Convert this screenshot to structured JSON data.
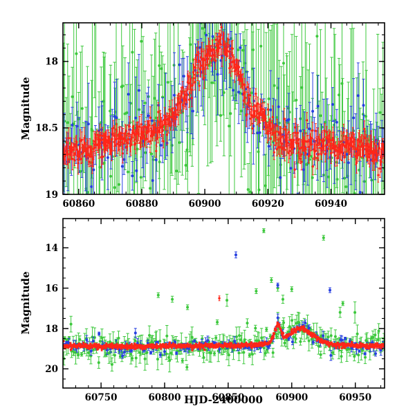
{
  "figure": {
    "background": "#ffffff",
    "description": "Two-panel photometric light curve, magnitude vs HJD"
  },
  "chart_data": [
    {
      "id": "top-panel",
      "type": "scatter",
      "title": "",
      "xlabel": "",
      "ylabel": "Magnitude",
      "xlim": [
        60855,
        60957
      ],
      "ylim": [
        17.71,
        19.0
      ],
      "y_inverted": true,
      "grid": false,
      "legend": "none",
      "xticks": [
        {
          "v": 60860,
          "label": "60860"
        },
        {
          "v": 60880,
          "label": "60880"
        },
        {
          "v": 60900,
          "label": "60900"
        },
        {
          "v": 60920,
          "label": "60920"
        },
        {
          "v": 60940,
          "label": "60940"
        }
      ],
      "x_minor": 5,
      "yticks": [
        {
          "v": 18,
          "label": "18"
        },
        {
          "v": 18.5,
          "label": "18.5"
        },
        {
          "v": 19,
          "label": "19"
        }
      ],
      "y_minor": 0.1,
      "trend": [
        [
          60855,
          18.68
        ],
        [
          60860,
          18.66
        ],
        [
          60864,
          18.68
        ],
        [
          60868,
          18.6
        ],
        [
          60872,
          18.57
        ],
        [
          60876,
          18.56
        ],
        [
          60880,
          18.55
        ],
        [
          60884,
          18.51
        ],
        [
          60888,
          18.46
        ],
        [
          60891,
          18.38
        ],
        [
          60894,
          18.22
        ],
        [
          60897,
          18.1
        ],
        [
          60900,
          17.99
        ],
        [
          60903,
          17.91
        ],
        [
          60906,
          17.87
        ],
        [
          60908,
          17.93
        ],
        [
          60911,
          18.1
        ],
        [
          60913,
          18.26
        ],
        [
          60915,
          18.4
        ],
        [
          60917,
          18.34
        ],
        [
          60920,
          18.5
        ],
        [
          60923,
          18.58
        ],
        [
          60927,
          18.61
        ],
        [
          60932,
          18.62
        ],
        [
          60937,
          18.62
        ],
        [
          60942,
          18.64
        ],
        [
          60947,
          18.64
        ],
        [
          60952,
          18.66
        ],
        [
          60957,
          18.66
        ]
      ],
      "series": [
        {
          "name": "green",
          "color": "#3cc83c",
          "n": 230,
          "scatter": 0.26,
          "tail_p": 0.1,
          "tail_f": 2.8,
          "err": 0.1,
          "err_var": 0.85,
          "r": 2.0,
          "cap": 2.2,
          "seed": 11,
          "extra": []
        },
        {
          "name": "blue",
          "color": "#2840e0",
          "n": 140,
          "scatter": 0.11,
          "tail_p": 0.06,
          "tail_f": 2.2,
          "err": 0.06,
          "err_var": 0.28,
          "r": 2.0,
          "cap": 2.0,
          "seed": 22,
          "extra": []
        },
        {
          "name": "red",
          "color": "#ff2619",
          "n": 520,
          "scatter": 0.05,
          "tail_p": 0.03,
          "tail_f": 1.8,
          "err": 0.035,
          "err_var": 0.05,
          "r": 1.7,
          "cap": 1.4,
          "seed": 33,
          "extra": []
        }
      ]
    },
    {
      "id": "bottom-panel",
      "type": "scatter",
      "title": "",
      "xlabel": "HJD-2400000",
      "ylabel": "Magnitude",
      "xlim": [
        60720,
        60973
      ],
      "ylim": [
        12.55,
        20.95
      ],
      "y_inverted": true,
      "grid": false,
      "legend": "none",
      "xticks": [
        {
          "v": 60750,
          "label": "60750"
        },
        {
          "v": 60800,
          "label": "60800"
        },
        {
          "v": 60850,
          "label": "60850"
        },
        {
          "v": 60900,
          "label": "60900"
        },
        {
          "v": 60950,
          "label": "60950"
        }
      ],
      "x_minor": 10,
      "yticks": [
        {
          "v": 14,
          "label": "14"
        },
        {
          "v": 16,
          "label": "16"
        },
        {
          "v": 18,
          "label": "18"
        },
        {
          "v": 20,
          "label": "20"
        }
      ],
      "y_minor": 0.5,
      "trend": [
        [
          60720,
          18.88
        ],
        [
          60745,
          18.87
        ],
        [
          60770,
          18.89
        ],
        [
          60795,
          18.87
        ],
        [
          60815,
          18.86
        ],
        [
          60835,
          18.86
        ],
        [
          60855,
          18.85
        ],
        [
          60870,
          18.82
        ],
        [
          60879,
          18.79
        ],
        [
          60883,
          18.68
        ],
        [
          60886,
          18.35
        ],
        [
          60889,
          17.68
        ],
        [
          60891,
          18.05
        ],
        [
          60894,
          18.42
        ],
        [
          60897,
          18.35
        ],
        [
          60900,
          18.18
        ],
        [
          60904,
          18.02
        ],
        [
          60907,
          17.96
        ],
        [
          60910,
          18.03
        ],
        [
          60913,
          18.15
        ],
        [
          60916,
          18.28
        ],
        [
          60919,
          18.42
        ],
        [
          60923,
          18.58
        ],
        [
          60927,
          18.7
        ],
        [
          60933,
          18.79
        ],
        [
          60942,
          18.83
        ],
        [
          60955,
          18.85
        ],
        [
          60973,
          18.85
        ]
      ],
      "series": [
        {
          "name": "green",
          "color": "#3cc83c",
          "n": 270,
          "scatter": 0.27,
          "tail_p": 0.12,
          "tail_f": 3.5,
          "err": 0.08,
          "err_var": 0.5,
          "r": 2.0,
          "cap": 2.2,
          "seed": 44,
          "extra": [
            [
              60795,
              16.35,
              0.12
            ],
            [
              60806,
              16.55,
              0.15
            ],
            [
              60818,
              16.95,
              0.12
            ],
            [
              60849,
              16.6,
              0.3
            ],
            [
              60872,
              16.15,
              0.12
            ],
            [
              60878,
              13.15,
              0.1
            ],
            [
              60884,
              15.6,
              0.12
            ],
            [
              60889,
              16.0,
              0.15
            ],
            [
              60893,
              16.55,
              0.2
            ],
            [
              60900,
              16.05,
              0.12
            ],
            [
              60925,
              13.5,
              0.12
            ],
            [
              60938,
              17.2,
              0.25
            ]
          ]
        },
        {
          "name": "blue",
          "color": "#2840e0",
          "n": 170,
          "scatter": 0.12,
          "tail_p": 0.07,
          "tail_f": 2.5,
          "err": 0.05,
          "err_var": 0.2,
          "r": 2.0,
          "cap": 2.0,
          "seed": 55,
          "extra": [
            [
              60856,
              14.35,
              0.15
            ],
            [
              60889,
              15.85,
              0.1
            ],
            [
              60930,
              16.1,
              0.12
            ]
          ]
        },
        {
          "name": "red",
          "color": "#ff2619",
          "n": 620,
          "scatter": 0.05,
          "tail_p": 0.02,
          "tail_f": 2.0,
          "err": 0.03,
          "err_var": 0.05,
          "r": 1.7,
          "cap": 1.4,
          "seed": 66,
          "extra": [
            [
              60843,
              16.5,
              0.12
            ]
          ]
        }
      ]
    }
  ]
}
